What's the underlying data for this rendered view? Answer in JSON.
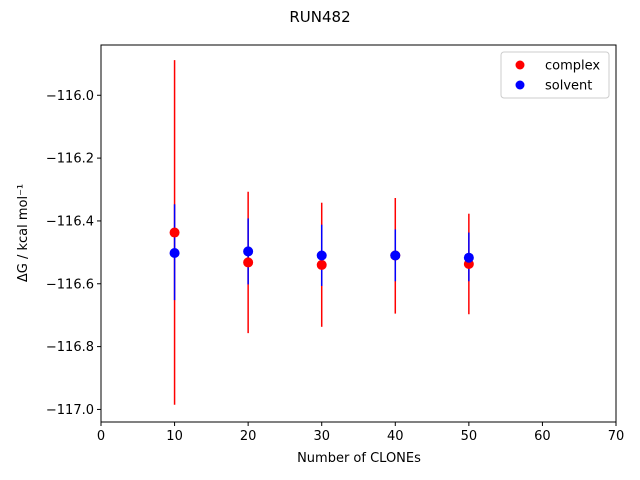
{
  "chart_data": {
    "type": "scatter",
    "title": "RUN482",
    "xlabel": "Number of CLONEs",
    "ylabel": "ΔG / kcal mol⁻¹",
    "xlim": [
      0,
      70
    ],
    "ylim": [
      -117.04,
      -115.84
    ],
    "xticks": [
      0,
      10,
      20,
      30,
      40,
      50,
      60,
      70
    ],
    "yticks": [
      -117.0,
      -116.8,
      -116.6,
      -116.4,
      -116.2,
      -116.0
    ],
    "ytick_labels": [
      "−117.0",
      "−116.8",
      "−116.6",
      "−116.4",
      "−116.2",
      "−116.0"
    ],
    "legend_position": "top-right",
    "grid": false,
    "series": [
      {
        "name": "complex",
        "color": "#ff0000",
        "x": [
          10,
          20,
          30,
          40,
          50
        ],
        "y": [
          -116.437,
          -116.532,
          -116.54,
          -116.51,
          -116.537
        ],
        "yerr_low": [
          -116.985,
          -116.757,
          -116.737,
          -116.695,
          -116.697
        ],
        "yerr_high": [
          -115.888,
          -116.307,
          -116.342,
          -116.327,
          -116.377
        ]
      },
      {
        "name": "solvent",
        "color": "#0000ff",
        "x": [
          10,
          20,
          30,
          40,
          50
        ],
        "y": [
          -116.502,
          -116.497,
          -116.51,
          -116.51,
          -116.517
        ],
        "yerr_low": [
          -116.652,
          -116.602,
          -116.607,
          -116.592,
          -116.592
        ],
        "yerr_high": [
          -116.347,
          -116.392,
          -116.412,
          -116.427,
          -116.437
        ]
      }
    ]
  }
}
